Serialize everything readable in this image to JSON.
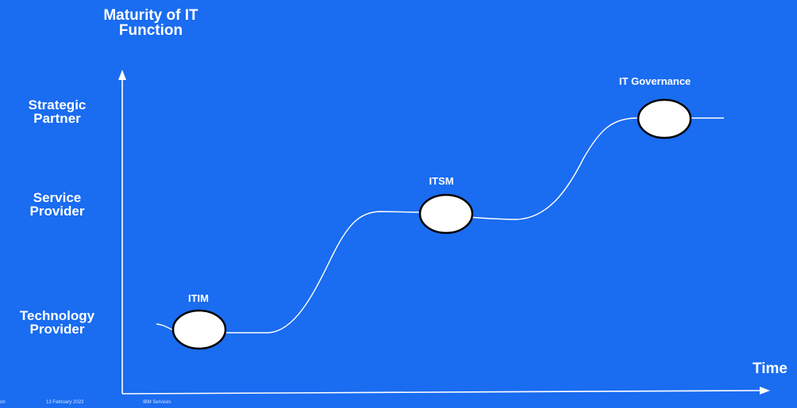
{
  "diagram": {
    "y_axis_title": "Maturity of IT\nFunction",
    "x_axis_title": "Time",
    "levels": [
      "Strategic Partner",
      "Service Provider",
      "Technology Provider"
    ],
    "stages": [
      "ITIM",
      "ITSM",
      "IT Governance"
    ]
  },
  "footer": {
    "left_text": "on",
    "date": "13 February 2023",
    "org": "IBM Services"
  },
  "colors": {
    "background": "#1a6cf0",
    "foreground": "#ffffff",
    "node_fill": "#ffffff",
    "node_stroke": "#000000"
  }
}
